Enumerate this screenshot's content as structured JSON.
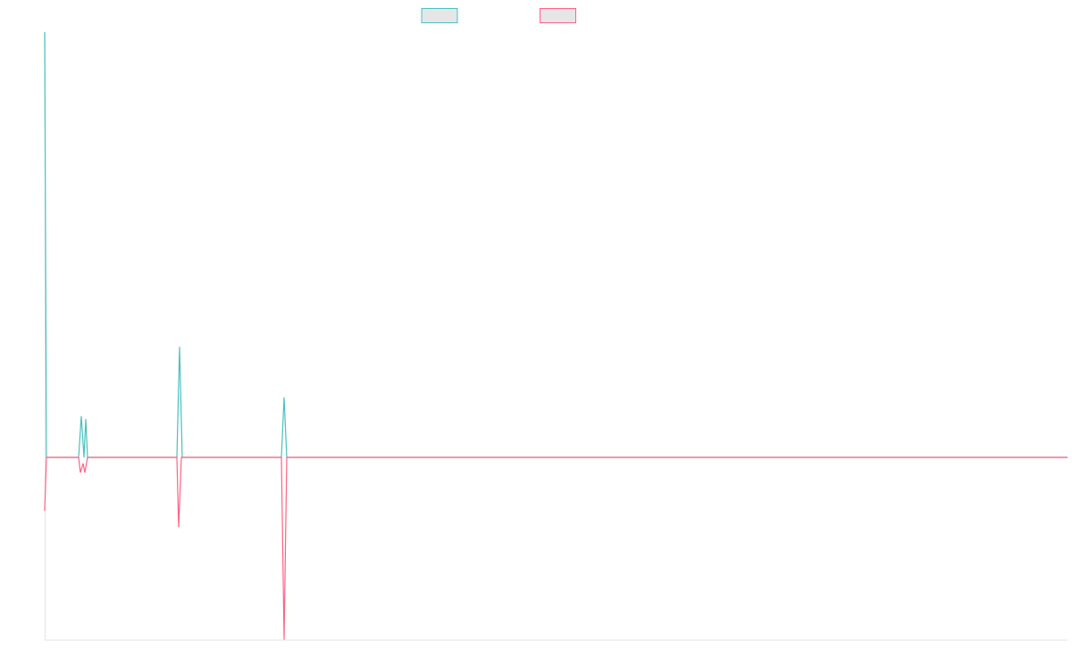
{
  "chart_data": {
    "type": "line",
    "xlim": [
      0,
      1145
    ],
    "ylim": [
      -0.3,
      0.7
    ],
    "series": [
      {
        "color": "#4bc0c0",
        "x": [
          0,
          2,
          38,
          41,
          44,
          46,
          48,
          148,
          151,
          154,
          265,
          268,
          271,
          1145
        ],
        "values": [
          0.7,
          0,
          0,
          0.068,
          0,
          0.063,
          0,
          0,
          0.182,
          0,
          0,
          0.099,
          0,
          0
        ]
      },
      {
        "color": "#ff6384",
        "x": [
          0,
          2,
          38,
          40,
          43,
          45,
          48,
          148,
          150,
          153,
          265,
          268,
          271,
          1145
        ],
        "values": [
          -0.088,
          0,
          0,
          -0.025,
          -0.01,
          -0.025,
          0,
          0,
          -0.115,
          0,
          0,
          -0.3,
          0,
          0
        ]
      }
    ]
  }
}
